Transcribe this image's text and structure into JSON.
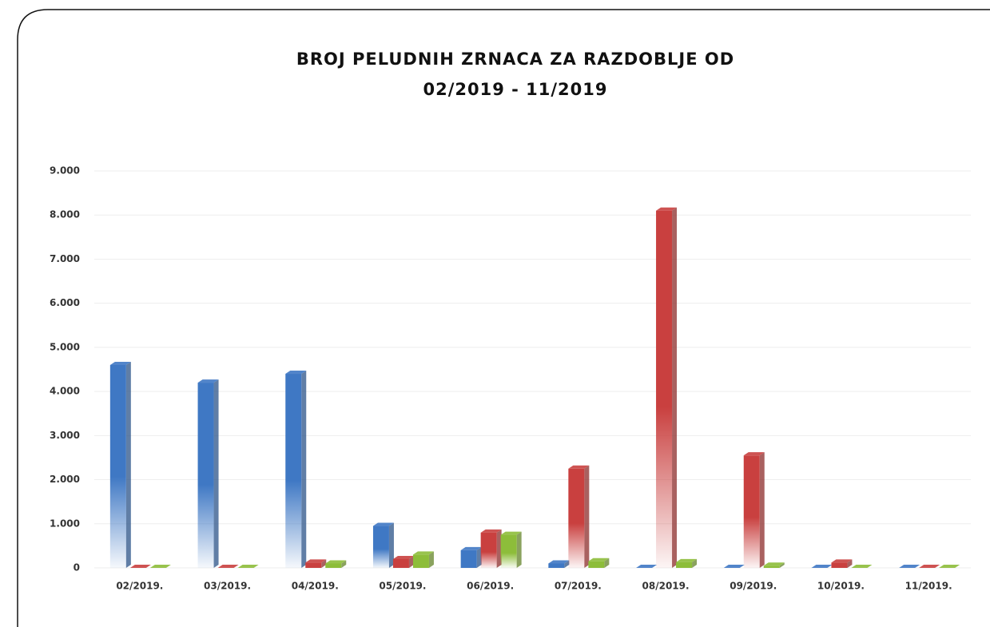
{
  "chart_data": {
    "type": "bar3d",
    "title": [
      "BROJ PELUDNIH ZRNACA ZA RAZDOBLJE OD",
      "02/2019 - 11/2019"
    ],
    "categories": [
      "02/2019.",
      "03/2019.",
      "04/2019.",
      "05/2019.",
      "06/2019.",
      "07/2019.",
      "08/2019.",
      "09/2019.",
      "10/2019.",
      "11/2019."
    ],
    "series": [
      {
        "color": "#3f78c4",
        "values": [
          4600,
          4200,
          4400,
          950,
          400,
          100,
          0,
          0,
          0,
          0
        ]
      },
      {
        "color": "#c9403f",
        "values": [
          0,
          0,
          120,
          200,
          800,
          2250,
          8100,
          2550,
          120,
          0
        ]
      },
      {
        "color": "#8dbd3a",
        "values": [
          0,
          0,
          100,
          300,
          750,
          150,
          130,
          50,
          0,
          0
        ]
      }
    ],
    "ylim": [
      0,
      9000
    ],
    "yticks": [
      0,
      {
        "value": 1000,
        "label": "1.000"
      },
      {
        "value": 2000,
        "label": "2.000"
      },
      {
        "value": 3000,
        "label": "3.000"
      },
      {
        "value": 4000,
        "label": "4.000"
      },
      {
        "value": 5000,
        "label": "5.000"
      },
      {
        "value": 6000,
        "label": "6.000"
      },
      {
        "value": 7000,
        "label": "7.000"
      },
      {
        "value": 8000,
        "label": "8.000"
      },
      {
        "value": 9000,
        "label": "9.000"
      }
    ],
    "grid": true
  }
}
